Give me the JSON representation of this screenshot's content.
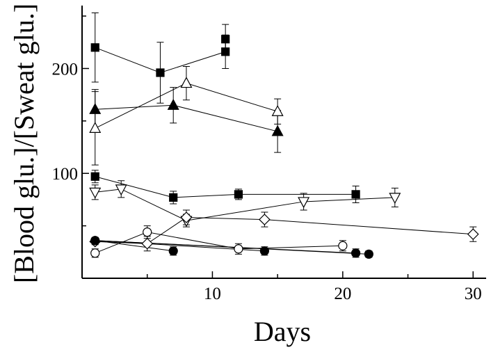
{
  "chart_data": {
    "type": "scatter",
    "title": "",
    "xlabel": "Days",
    "ylabel": "[Blood glu.]/[Sweat glu.]",
    "xlim": [
      0,
      31
    ],
    "ylim": [
      0,
      260
    ],
    "xticks": [
      10,
      20,
      30
    ],
    "yticks": [
      100,
      200
    ],
    "xtick_labels": [
      "10",
      "20",
      "30"
    ],
    "ytick_labels": [
      "100",
      "200"
    ],
    "grid": false,
    "legend": "none",
    "series": [
      {
        "name": "filled-square-high",
        "marker": "square",
        "fill": "filled",
        "connect": "sequential",
        "points": [
          {
            "x": 1,
            "y": 220,
            "err": 33
          },
          {
            "x": 6,
            "y": 196,
            "err": 29
          },
          {
            "x": 11,
            "y": 216,
            "err": 16
          },
          {
            "x": 11,
            "y": 228,
            "err": 14
          }
        ]
      },
      {
        "name": "filled-triangle-up",
        "marker": "triangle-up",
        "fill": "filled",
        "connect": "sequential",
        "points": [
          {
            "x": 1,
            "y": 161,
            "err": 19
          },
          {
            "x": 7,
            "y": 165,
            "err": 17
          },
          {
            "x": 15,
            "y": 140,
            "err": 20
          }
        ]
      },
      {
        "name": "open-triangle-up",
        "marker": "triangle-up",
        "fill": "open",
        "connect": "sequential",
        "points": [
          {
            "x": 1,
            "y": 143,
            "err": 35
          },
          {
            "x": 8,
            "y": 186,
            "err": 16
          },
          {
            "x": 15,
            "y": 159,
            "err": 12
          }
        ]
      },
      {
        "name": "filled-square-low",
        "marker": "square",
        "fill": "filled",
        "connect": "sequential",
        "points": [
          {
            "x": 1,
            "y": 97,
            "err": 6
          },
          {
            "x": 7,
            "y": 77,
            "err": 6
          },
          {
            "x": 12,
            "y": 80,
            "err": 5
          },
          {
            "x": 21,
            "y": 80,
            "err": 8
          }
        ]
      },
      {
        "name": "open-triangle-down",
        "marker": "triangle-down",
        "fill": "open",
        "connect": "sequential",
        "points": [
          {
            "x": 1,
            "y": 82,
            "err": 7
          },
          {
            "x": 3,
            "y": 85,
            "err": 8
          },
          {
            "x": 8,
            "y": 55,
            "err": 6
          },
          {
            "x": 17,
            "y": 73,
            "err": 8
          },
          {
            "x": 24,
            "y": 77,
            "err": 9
          }
        ]
      },
      {
        "name": "open-diamond",
        "marker": "diamond",
        "fill": "open",
        "connect": "sequential",
        "points": [
          {
            "x": 1,
            "y": 35,
            "err": 3
          },
          {
            "x": 5,
            "y": 33,
            "err": 7
          },
          {
            "x": 8,
            "y": 58,
            "err": 7
          },
          {
            "x": 14,
            "y": 56,
            "err": 7
          },
          {
            "x": 30,
            "y": 42,
            "err": 7
          }
        ]
      },
      {
        "name": "open-circle",
        "marker": "circle",
        "fill": "open",
        "connect": "sequential",
        "points": [
          {
            "x": 1,
            "y": 24,
            "err": 4
          },
          {
            "x": 5,
            "y": 44,
            "err": 6
          },
          {
            "x": 12,
            "y": 28,
            "err": 5
          },
          {
            "x": 20,
            "y": 31,
            "err": 5
          }
        ]
      },
      {
        "name": "filled-circle",
        "marker": "circle",
        "fill": "filled",
        "connect": "hub",
        "points": [
          {
            "x": 1,
            "y": 36,
            "err": 3
          },
          {
            "x": 7,
            "y": 26,
            "err": 4
          },
          {
            "x": 14,
            "y": 26,
            "err": 4
          },
          {
            "x": 21,
            "y": 24,
            "err": 4
          },
          {
            "x": 22,
            "y": 23,
            "err": 3
          }
        ]
      }
    ]
  }
}
